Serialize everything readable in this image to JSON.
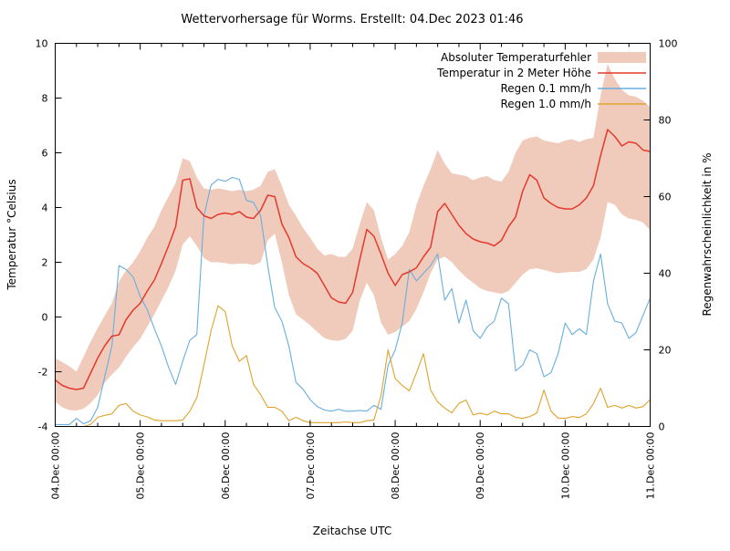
{
  "title": "Wettervorhersage für Worms. Erstellt: 04.Dec 2023 01:46",
  "chart_data": {
    "type": "line",
    "title": "Wettervorhersage für Worms. Erstellt: 04.Dec 2023 01:46",
    "xlabel": "Zeitachse UTC",
    "ylabel_left": "Temperatur °Celsius",
    "ylabel_right": "Regenwahrscheinlichkeit in %",
    "ylim_left": [
      -4,
      10
    ],
    "ylim_right": [
      0,
      100
    ],
    "x_range_hours": [
      0,
      168
    ],
    "x_step_hours": 2,
    "x_major_tick_hours": 24,
    "x_minor_tick_hours": 6,
    "grid": false,
    "legend_position": "top-right-inside",
    "x_tick_labels": [
      "04.Dec 00:00",
      "05.Dec 00:00",
      "06.Dec 00:00",
      "07.Dec 00:00",
      "08.Dec 00:00",
      "09.Dec 00:00",
      "10.Dec 00:00",
      "11.Dec 00:00"
    ],
    "y_ticks_left": [
      10,
      8,
      6,
      4,
      2,
      0,
      -2,
      -4
    ],
    "y_ticks_right": [
      100,
      80,
      60,
      40,
      20,
      0
    ],
    "colors": {
      "error_band": "#f0cbbc",
      "temperature": "#e33a2c",
      "rain_01": "#68aede",
      "rain_10": "#dfa32b",
      "axis": "#000000",
      "background": "#ffffff"
    },
    "legend": [
      {
        "label": "Absoluter Temperaturfehler",
        "type": "band",
        "series": "temperature_error_band",
        "color": "#f0cbbc"
      },
      {
        "label": "Temperatur in 2 Meter Höhe",
        "type": "line",
        "series": "temperature_2m",
        "color": "#e33a2c",
        "axis": "left"
      },
      {
        "label": "Regen 0.1 mm/h",
        "type": "line",
        "series": "rain_probability_0_1mm",
        "color": "#68aede",
        "axis": "right"
      },
      {
        "label": "Regen 1.0 mm/h",
        "type": "line",
        "series": "rain_probability_1_0mm",
        "color": "#dfa32b",
        "axis": "right"
      }
    ],
    "series": {
      "temperature_2m": [
        -2.3,
        -2.5,
        -2.6,
        -2.65,
        -2.6,
        -2.05,
        -1.5,
        -1.05,
        -0.7,
        -0.65,
        -0.1,
        0.25,
        0.5,
        0.95,
        1.35,
        1.95,
        2.6,
        3.3,
        5.0,
        5.05,
        4.0,
        3.7,
        3.6,
        3.75,
        3.8,
        3.75,
        3.85,
        3.65,
        3.6,
        3.9,
        4.45,
        4.4,
        3.4,
        2.9,
        2.2,
        1.95,
        1.8,
        1.6,
        1.15,
        0.7,
        0.55,
        0.5,
        0.9,
        2.1,
        3.2,
        2.95,
        2.3,
        1.6,
        1.15,
        1.55,
        1.65,
        1.8,
        2.2,
        2.55,
        3.85,
        4.15,
        3.75,
        3.35,
        3.05,
        2.85,
        2.75,
        2.7,
        2.6,
        2.8,
        3.3,
        3.65,
        4.6,
        5.2,
        5.0,
        4.35,
        4.15,
        4.0,
        3.95,
        3.95,
        4.1,
        4.35,
        4.8,
        5.9,
        6.85,
        6.6,
        6.25,
        6.4,
        6.35,
        6.1,
        6.05
      ],
      "temperature_error_band_upper": [
        -1.5,
        -1.65,
        -1.8,
        -2.0,
        -1.45,
        -0.9,
        -0.4,
        0.05,
        0.5,
        1.3,
        1.7,
        2.0,
        2.4,
        2.9,
        3.3,
        3.9,
        4.4,
        4.9,
        5.8,
        5.7,
        5.1,
        4.7,
        4.65,
        4.7,
        4.65,
        4.6,
        4.65,
        4.6,
        4.65,
        4.8,
        5.3,
        5.4,
        4.8,
        4.1,
        3.7,
        3.25,
        2.9,
        2.5,
        2.25,
        2.3,
        2.2,
        2.2,
        2.5,
        3.4,
        4.2,
        3.9,
        2.9,
        2.1,
        2.3,
        2.6,
        3.1,
        4.1,
        4.8,
        5.4,
        6.1,
        5.6,
        5.25,
        5.2,
        5.15,
        5.0,
        5.1,
        5.15,
        5.0,
        4.95,
        5.3,
        6.0,
        6.45,
        6.55,
        6.6,
        6.45,
        6.4,
        6.35,
        6.45,
        6.5,
        6.4,
        6.5,
        6.55,
        8.1,
        9.25,
        8.7,
        8.3,
        8.1,
        8.05,
        7.9,
        7.67
      ],
      "temperature_error_band_lower": [
        -3.1,
        -3.3,
        -3.4,
        -3.42,
        -3.35,
        -3.15,
        -2.85,
        -2.4,
        -2.1,
        -1.85,
        -1.45,
        -1.1,
        -0.8,
        -0.35,
        0.1,
        0.6,
        1.1,
        1.7,
        2.65,
        2.95,
        2.6,
        2.15,
        2.0,
        2.0,
        1.97,
        1.93,
        1.95,
        1.95,
        1.9,
        2.0,
        2.8,
        3.05,
        2.0,
        0.8,
        0.1,
        -0.1,
        -0.3,
        -0.55,
        -0.77,
        -0.85,
        -0.87,
        -0.8,
        -0.5,
        0.6,
        1.25,
        0.8,
        -0.2,
        -0.65,
        -0.55,
        -0.35,
        -0.15,
        0.3,
        0.9,
        1.6,
        2.1,
        2.2,
        2.0,
        1.7,
        1.45,
        1.25,
        1.05,
        0.95,
        0.9,
        0.85,
        0.95,
        1.25,
        1.55,
        1.75,
        1.78,
        1.72,
        1.65,
        1.6,
        1.63,
        1.65,
        1.65,
        1.75,
        2.1,
        2.9,
        4.2,
        4.1,
        3.75,
        3.6,
        3.55,
        3.45,
        3.17
      ],
      "rain_probability_0_1mm": [
        0.5,
        0.5,
        0.5,
        2.1,
        0.7,
        1.5,
        5,
        13,
        21,
        42,
        41,
        39,
        34,
        30.5,
        25.5,
        21,
        15.5,
        11,
        17,
        22.5,
        24,
        55,
        63,
        64.5,
        64,
        65,
        64.5,
        59,
        58.5,
        55,
        42,
        31,
        27.5,
        21,
        11.5,
        9.7,
        7,
        5.2,
        4.3,
        4,
        4.5,
        4,
        4,
        4.2,
        4,
        5.5,
        4.5,
        16,
        20,
        27,
        41,
        38,
        40,
        42,
        45,
        33,
        36,
        27,
        33,
        25,
        23,
        26,
        27.5,
        33.5,
        32,
        14.5,
        16,
        20,
        19,
        13,
        14,
        19,
        27,
        24,
        25.5,
        24,
        38,
        45,
        32,
        27.5,
        27,
        23,
        24.5,
        29,
        33.5
      ],
      "rain_probability_1_0mm": [
        0,
        0,
        0,
        0,
        0,
        0.5,
        2.4,
        2.9,
        3.3,
        5.5,
        6,
        4,
        3,
        2.5,
        1.7,
        1.5,
        1.5,
        1.5,
        1.7,
        4,
        7.5,
        16,
        25,
        31.5,
        30,
        21,
        17,
        18.5,
        11,
        8.3,
        5,
        5,
        4,
        1.5,
        2.4,
        1.5,
        1,
        1,
        1,
        1,
        1,
        1.2,
        1,
        1,
        1.5,
        1.7,
        8,
        20,
        12.5,
        10.7,
        9.3,
        14,
        19,
        9.5,
        6.4,
        4.8,
        3.6,
        6,
        6.9,
        3,
        3.5,
        3,
        4,
        3.3,
        3.3,
        2.4,
        2.1,
        2.6,
        3.5,
        9.5,
        4,
        2.2,
        2.1,
        2.6,
        2.3,
        3.3,
        6,
        10,
        5,
        5.5,
        4.8,
        5.5,
        4.8,
        5.2,
        7
      ]
    }
  }
}
